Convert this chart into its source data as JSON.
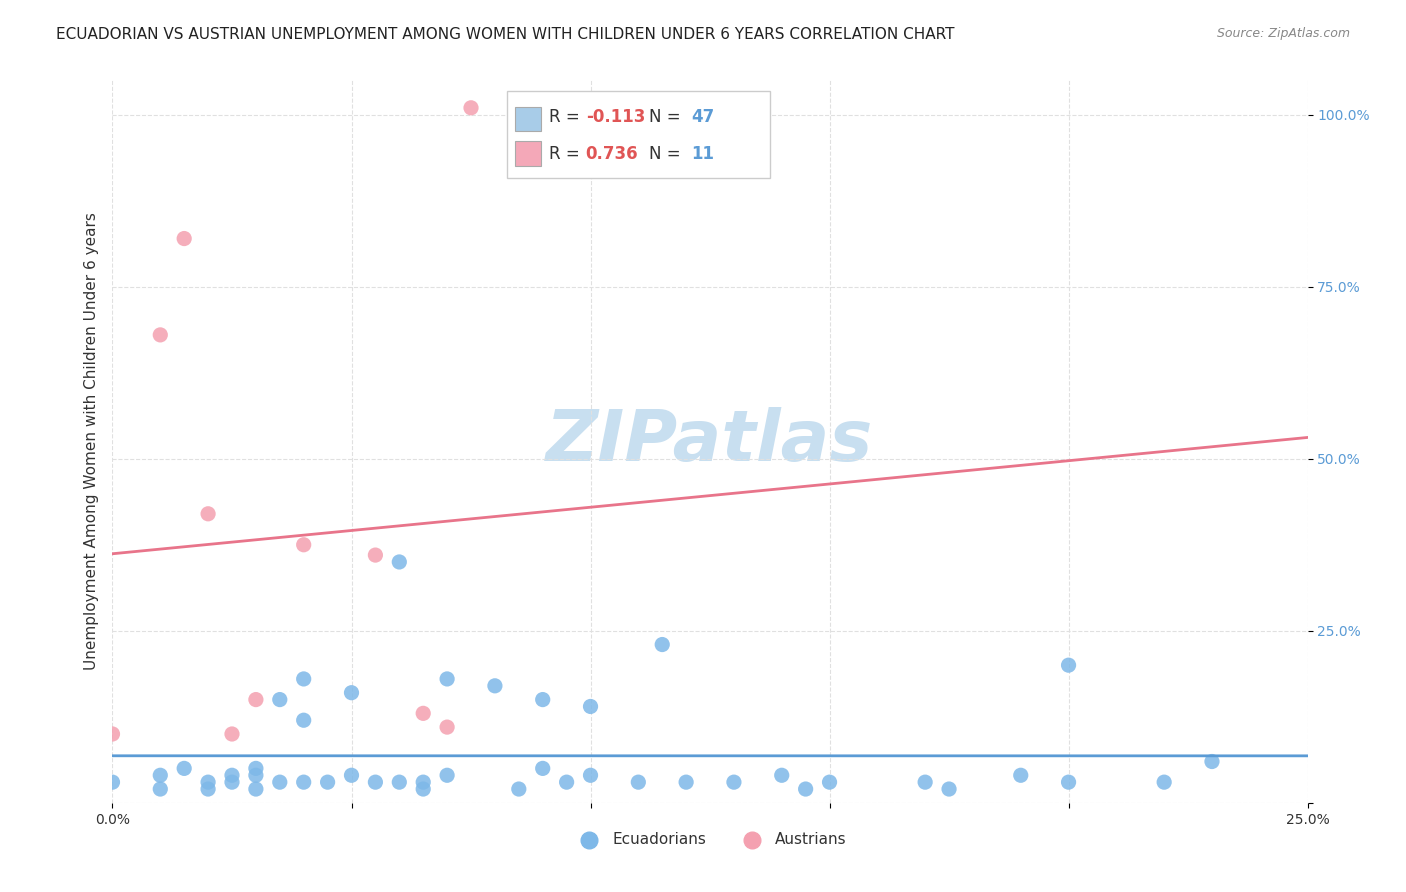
{
  "title": "ECUADORIAN VS AUSTRIAN UNEMPLOYMENT AMONG WOMEN WITH CHILDREN UNDER 6 YEARS CORRELATION CHART",
  "source": "Source: ZipAtlas.com",
  "ylabel": "Unemployment Among Women with Children Under 6 years",
  "xlim": [
    0.0,
    0.25
  ],
  "ylim": [
    0.0,
    1.05
  ],
  "xticks": [
    0.0,
    0.05,
    0.1,
    0.15,
    0.2,
    0.25
  ],
  "xtick_labels": [
    "0.0%",
    "",
    "",
    "",
    "",
    "25.0%"
  ],
  "yticks": [
    0.0,
    0.25,
    0.5,
    0.75,
    1.0
  ],
  "ytick_labels": [
    "",
    "25.0%",
    "50.0%",
    "75.0%",
    "100.0%"
  ],
  "watermark_text": "ZIPatlas",
  "ecuadorians_x": [
    0.0,
    0.01,
    0.01,
    0.015,
    0.02,
    0.02,
    0.025,
    0.025,
    0.03,
    0.03,
    0.03,
    0.035,
    0.035,
    0.04,
    0.04,
    0.04,
    0.045,
    0.05,
    0.05,
    0.055,
    0.06,
    0.06,
    0.065,
    0.065,
    0.07,
    0.07,
    0.08,
    0.085,
    0.09,
    0.09,
    0.095,
    0.1,
    0.1,
    0.11,
    0.115,
    0.12,
    0.13,
    0.14,
    0.145,
    0.15,
    0.17,
    0.175,
    0.19,
    0.2,
    0.2,
    0.22,
    0.23
  ],
  "ecuadorians_y": [
    0.03,
    0.04,
    0.02,
    0.05,
    0.03,
    0.02,
    0.04,
    0.03,
    0.05,
    0.02,
    0.04,
    0.03,
    0.15,
    0.03,
    0.12,
    0.18,
    0.03,
    0.04,
    0.16,
    0.03,
    0.03,
    0.35,
    0.03,
    0.02,
    0.04,
    0.18,
    0.17,
    0.02,
    0.15,
    0.05,
    0.03,
    0.14,
    0.04,
    0.03,
    0.23,
    0.03,
    0.03,
    0.04,
    0.02,
    0.03,
    0.03,
    0.02,
    0.04,
    0.2,
    0.03,
    0.03,
    0.06
  ],
  "austrians_x": [
    0.0,
    0.01,
    0.015,
    0.02,
    0.025,
    0.03,
    0.04,
    0.055,
    0.065,
    0.07,
    0.075
  ],
  "austrians_y": [
    0.1,
    0.68,
    0.82,
    0.42,
    0.1,
    0.15,
    0.375,
    0.36,
    0.13,
    0.11,
    1.01
  ],
  "ecu_color": "#7eb8e8",
  "aut_color": "#f4a0b0",
  "ecu_line_color": "#5b9bd5",
  "aut_line_color": "#e8748a",
  "legend_color_ecu": "#a8cce8",
  "legend_color_aut": "#f4a8b8",
  "r_color": "#e05555",
  "n_color": "#5b9bd5",
  "title_fontsize": 11,
  "axis_label_fontsize": 11,
  "tick_fontsize": 10,
  "legend_fontsize": 12,
  "watermark_color": "#c8dff0",
  "background_color": "#ffffff",
  "grid_color": "#e0e0e0"
}
